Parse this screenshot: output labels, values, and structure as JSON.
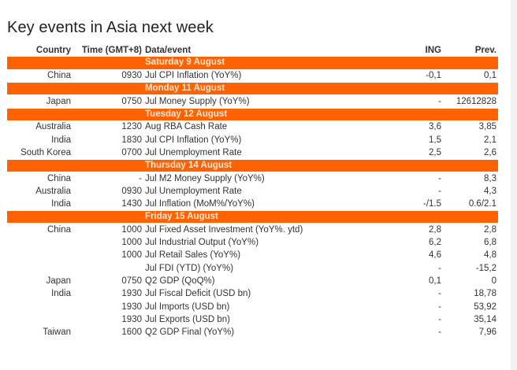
{
  "title": "Key events in Asia next week",
  "columns": {
    "country": "Country",
    "time": "Time (GMT+8)",
    "event": "Data/event",
    "ing": "ING",
    "prev": "Prev."
  },
  "days": [
    {
      "label": "Saturday 9 August",
      "rows": [
        {
          "country": "China",
          "time": "0930",
          "event": "Jul CPI Inflation (YoY%)",
          "ing": "-0,1",
          "prev": "0,1"
        }
      ]
    },
    {
      "label": "Monday 11 August",
      "rows": [
        {
          "country": "Japan",
          "time": "0750",
          "event": "Jul Money Supply (YoY%)",
          "ing": "-",
          "prev": "12612828"
        }
      ]
    },
    {
      "label": "Tuesday 12 August",
      "rows": [
        {
          "country": "Australia",
          "time": "1230",
          "event": "Aug RBA Cash Rate",
          "ing": "3,6",
          "prev": "3,85"
        },
        {
          "country": "India",
          "time": "1830",
          "event": "Jul CPI Inflation (YoY%)",
          "ing": "1,5",
          "prev": "2,1"
        },
        {
          "country": "South Korea",
          "time": "0700",
          "event": "Jul Unemployment Rate",
          "ing": "2,5",
          "prev": "2,6"
        }
      ]
    },
    {
      "label": "Thursday 14 August",
      "rows": [
        {
          "country": "China",
          "time": "-",
          "event": "Jul M2 Money Supply (YoY%)",
          "ing": "-",
          "prev": "8,3"
        },
        {
          "country": "Australia",
          "time": "0930",
          "event": "Jul Unemployment Rate",
          "ing": "-",
          "prev": "4,3"
        },
        {
          "country": "India",
          "time": "1430",
          "event": "Jul Inflation (MoM%/YoY%)",
          "ing": "-/1.5",
          "prev": "0.6/2.1"
        }
      ]
    },
    {
      "label": "Friday 15 August",
      "rows": [
        {
          "country": "China",
          "time": "1000",
          "event": "Jul Fixed Asset Investment (YoY%. ytd)",
          "ing": "2,8",
          "prev": "2,8"
        },
        {
          "country": "",
          "time": "1000",
          "event": "Jul Industrial Output (YoY%)",
          "ing": "6,2",
          "prev": "6,8"
        },
        {
          "country": "",
          "time": "1000",
          "event": "Jul Retail Sales (YoY%)",
          "ing": "4,6",
          "prev": "4,8"
        },
        {
          "country": "",
          "time": "",
          "event": "Jul FDI (YTD) (YoY%)",
          "ing": "-",
          "prev": "-15,2"
        },
        {
          "country": "Japan",
          "time": "0750",
          "event": "Q2 GDP (QoQ%)",
          "ing": "0,1",
          "prev": "0"
        },
        {
          "country": "India",
          "time": "1930",
          "event": "Jul Fiscal Deficit (USD bn)",
          "ing": "-",
          "prev": "18,78"
        },
        {
          "country": "",
          "time": "1930",
          "event": "Jul Imports (USD bn)",
          "ing": "-",
          "prev": "53,92"
        },
        {
          "country": "",
          "time": "1930",
          "event": "Jul Exports (USD bn)",
          "ing": "-",
          "prev": "35,14"
        },
        {
          "country": "Taiwan",
          "time": "1600",
          "event": "Q2 GDP Final (YoY%)",
          "ing": "-",
          "prev": "7,96"
        }
      ]
    }
  ],
  "colors": {
    "accent": "#ff6200",
    "day_text": "#ffe7d6",
    "text": "#333333"
  }
}
